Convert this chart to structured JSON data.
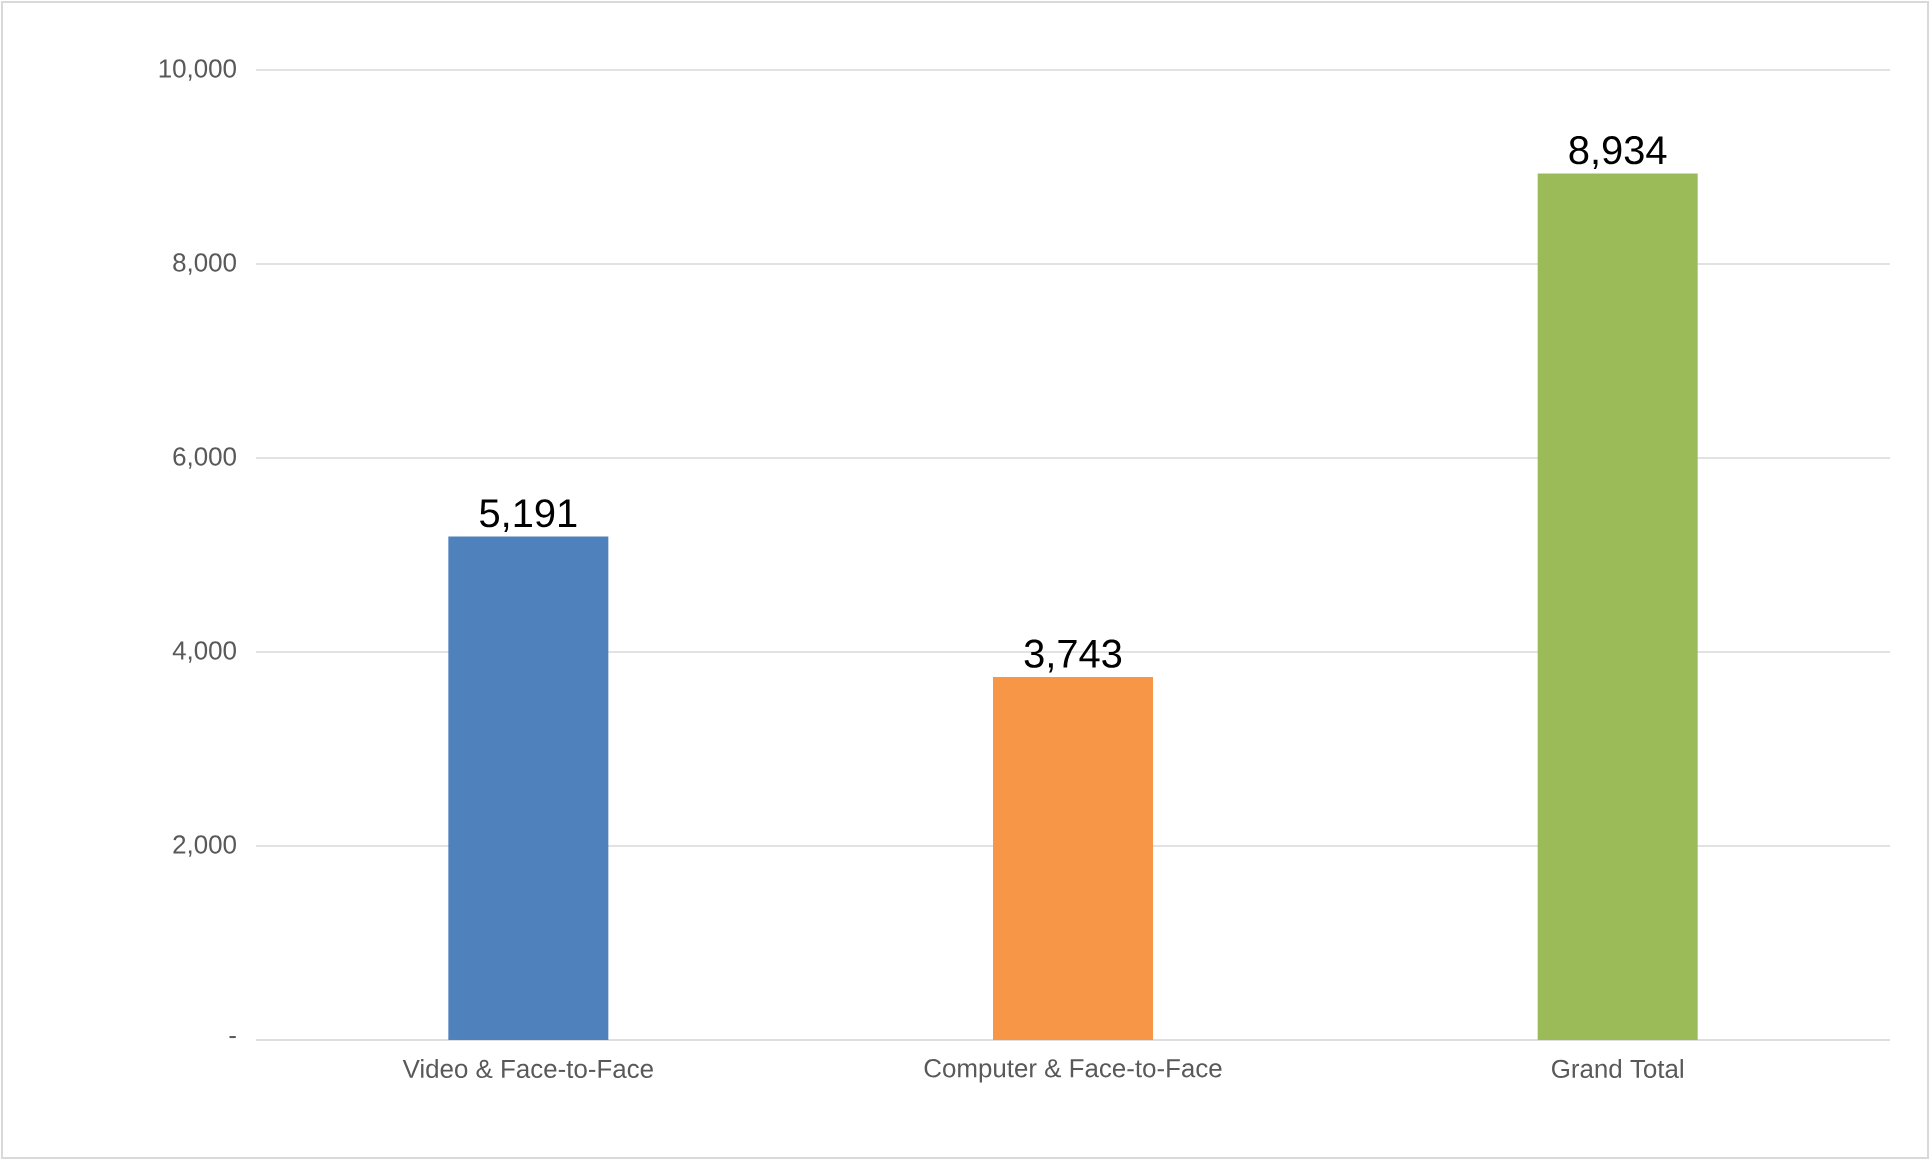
{
  "chart_data": {
    "type": "bar",
    "categories": [
      "Video & Face-to-Face",
      "Computer & Face-to-Face",
      "Grand Total"
    ],
    "values": [
      5191,
      3743,
      8934
    ],
    "colors": [
      "#4f81bd",
      "#f79646",
      "#9bbb59"
    ],
    "value_labels": [
      "5,191",
      "3,743",
      "8,934"
    ],
    "ylim": [
      0,
      10000
    ],
    "yticks": [
      {
        "value": 0,
        "label": "-"
      },
      {
        "value": 2000,
        "label": "2,000"
      },
      {
        "value": 4000,
        "label": "4,000"
      },
      {
        "value": 6000,
        "label": "6,000"
      },
      {
        "value": 8000,
        "label": "8,000"
      },
      {
        "value": 10000,
        "label": "10,000"
      }
    ],
    "grid": "y"
  }
}
